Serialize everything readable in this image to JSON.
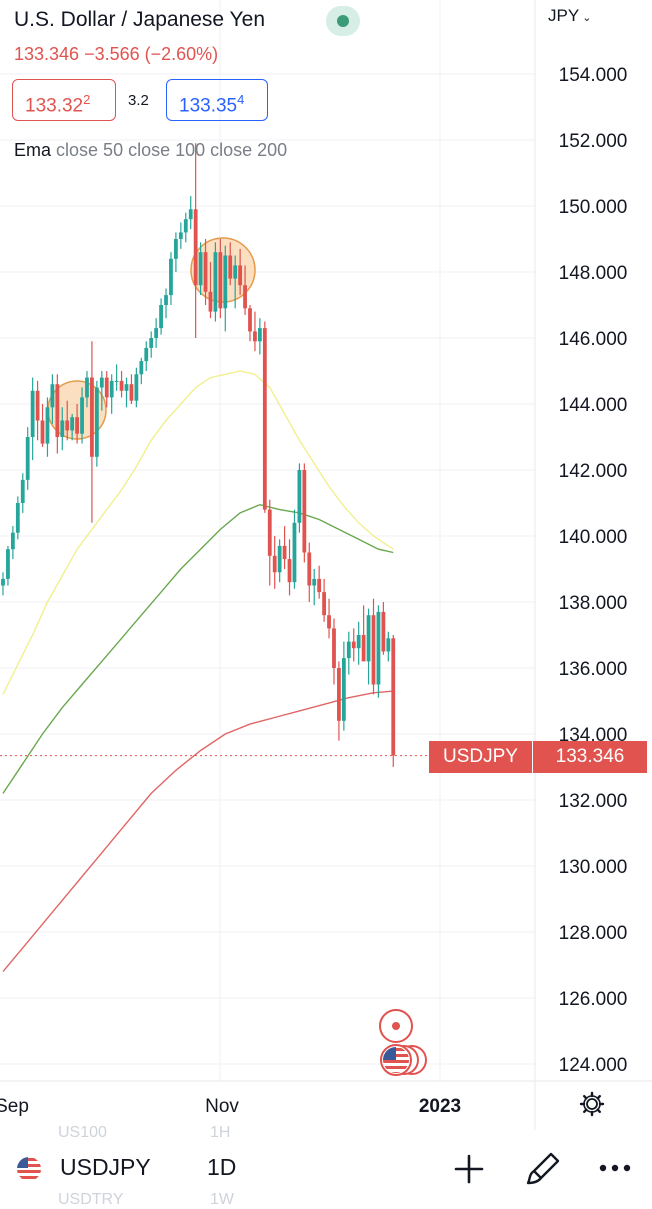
{
  "header": {
    "title": "U.S. Dollar / Japanese Yen",
    "change": "133.346 −3.566 (−2.60%)",
    "bid": "133.32",
    "bid_sup": "2",
    "spread": "3.2",
    "ask": "133.35",
    "ask_sup": "4",
    "ema_label": "Ema",
    "ema_params": "close 50 close 100 close 200",
    "currency": "JPY"
  },
  "price_tags": {
    "symbol": "USDJPY",
    "last": "133.346"
  },
  "toolbar": {
    "symbol": "USDJPY",
    "interval": "1D",
    "ghost_top_symbol": "US100",
    "ghost_top_interval": "1H",
    "ghost_bottom_symbol": "USDTRY",
    "ghost_bottom_interval": "1W"
  },
  "colors": {
    "up": "#26a69a",
    "down": "#e0534f",
    "ema50": "#f2ef8f",
    "ema100": "#6aa84f",
    "ema200": "#e06666",
    "highlight": "#f6c48e"
  },
  "chart_data": {
    "type": "candlestick",
    "symbol": "USDJPY",
    "interval": "1D",
    "y_ticks": [
      154,
      152,
      150,
      148,
      146,
      144,
      142,
      140,
      138,
      136,
      134,
      132,
      130,
      128,
      126,
      124
    ],
    "y_tick_labels": [
      "154.000",
      "152.000",
      "150.000",
      "148.000",
      "146.000",
      "144.000",
      "142.000",
      "140.000",
      "138.000",
      "136.000",
      "134.000",
      "132.000",
      "130.000",
      "128.000",
      "126.000",
      "124.000"
    ],
    "ylim": [
      123.1,
      155.3
    ],
    "x_labels": [
      "Sep",
      "Nov",
      "2023"
    ],
    "last_price": 133.346,
    "candles_ohlc": [
      [
        138.5,
        138.9,
        138.2,
        138.7
      ],
      [
        138.7,
        139.7,
        138.5,
        139.6
      ],
      [
        139.6,
        140.3,
        139.3,
        140.1
      ],
      [
        140.1,
        141.2,
        139.9,
        141.0
      ],
      [
        141.0,
        141.9,
        140.7,
        141.7
      ],
      [
        141.7,
        143.3,
        141.4,
        143.0
      ],
      [
        143.0,
        144.8,
        142.3,
        144.4
      ],
      [
        144.4,
        144.7,
        142.9,
        143.5
      ],
      [
        143.5,
        144.0,
        142.7,
        142.8
      ],
      [
        142.8,
        144.2,
        142.4,
        143.9
      ],
      [
        143.9,
        144.9,
        143.4,
        144.6
      ],
      [
        144.6,
        144.9,
        142.5,
        143.0
      ],
      [
        143.0,
        143.9,
        142.6,
        143.5
      ],
      [
        143.5,
        144.1,
        142.9,
        143.2
      ],
      [
        143.2,
        143.7,
        142.9,
        143.6
      ],
      [
        143.6,
        144.0,
        142.8,
        143.1
      ],
      [
        143.1,
        144.5,
        142.8,
        144.2
      ],
      [
        144.2,
        145.0,
        143.9,
        144.8
      ],
      [
        144.8,
        145.9,
        140.4,
        142.4
      ],
      [
        142.4,
        144.7,
        142.1,
        144.5
      ],
      [
        144.5,
        145.0,
        143.8,
        144.8
      ],
      [
        144.8,
        145.0,
        143.9,
        144.2
      ],
      [
        144.2,
        144.9,
        143.7,
        144.7
      ],
      [
        144.7,
        145.2,
        144.4,
        144.7
      ],
      [
        144.7,
        145.0,
        144.2,
        144.4
      ],
      [
        144.4,
        144.8,
        143.9,
        144.6
      ],
      [
        144.6,
        144.9,
        144.0,
        144.1
      ],
      [
        144.1,
        145.1,
        143.9,
        144.9
      ],
      [
        144.9,
        145.4,
        144.6,
        145.3
      ],
      [
        145.3,
        145.9,
        145.0,
        145.7
      ],
      [
        145.7,
        146.2,
        145.4,
        146.0
      ],
      [
        146.0,
        146.6,
        145.7,
        146.3
      ],
      [
        146.3,
        147.2,
        146.1,
        147.0
      ],
      [
        147.0,
        147.5,
        146.6,
        147.3
      ],
      [
        147.3,
        148.6,
        147.0,
        148.4
      ],
      [
        148.4,
        149.2,
        148.0,
        149.0
      ],
      [
        149.0,
        149.5,
        148.7,
        149.2
      ],
      [
        149.2,
        149.8,
        148.9,
        149.6
      ],
      [
        149.6,
        150.3,
        149.3,
        149.9
      ],
      [
        149.9,
        151.9,
        146.0,
        147.6
      ],
      [
        147.6,
        148.9,
        147.3,
        148.6
      ],
      [
        148.6,
        149.0,
        147.0,
        147.4
      ],
      [
        147.4,
        148.3,
        146.6,
        146.8
      ],
      [
        146.8,
        148.9,
        146.5,
        148.6
      ],
      [
        148.6,
        149.0,
        146.6,
        146.9
      ],
      [
        146.9,
        148.8,
        146.2,
        148.5
      ],
      [
        148.5,
        148.9,
        147.6,
        147.8
      ],
      [
        147.8,
        148.5,
        146.9,
        148.2
      ],
      [
        148.2,
        148.7,
        147.3,
        147.6
      ],
      [
        147.6,
        148.2,
        146.7,
        146.9
      ],
      [
        146.9,
        147.0,
        145.9,
        146.2
      ],
      [
        146.2,
        146.8,
        145.6,
        145.9
      ],
      [
        145.9,
        146.6,
        145.5,
        146.3
      ],
      [
        146.3,
        146.5,
        140.7,
        140.8
      ],
      [
        140.8,
        141.1,
        138.5,
        139.4
      ],
      [
        139.4,
        140.0,
        138.4,
        138.9
      ],
      [
        138.9,
        139.9,
        138.6,
        139.7
      ],
      [
        139.7,
        140.3,
        139.0,
        139.3
      ],
      [
        139.3,
        139.9,
        138.2,
        138.6
      ],
      [
        138.6,
        140.8,
        138.4,
        140.4
      ],
      [
        140.4,
        142.2,
        140.1,
        142.0
      ],
      [
        142.0,
        142.2,
        139.2,
        139.5
      ],
      [
        139.5,
        139.8,
        138.0,
        138.5
      ],
      [
        138.5,
        139.0,
        137.9,
        138.7
      ],
      [
        138.7,
        139.1,
        138.1,
        138.3
      ],
      [
        138.3,
        138.7,
        137.4,
        137.6
      ],
      [
        137.6,
        138.1,
        136.9,
        137.2
      ],
      [
        137.2,
        137.5,
        135.5,
        136.0
      ],
      [
        136.0,
        136.2,
        133.8,
        134.4
      ],
      [
        134.4,
        136.8,
        134.1,
        136.3
      ],
      [
        136.3,
        137.1,
        135.8,
        136.8
      ],
      [
        136.8,
        137.2,
        136.2,
        136.6
      ],
      [
        136.6,
        137.4,
        136.1,
        137.0
      ],
      [
        137.0,
        137.9,
        136.4,
        136.2
      ],
      [
        136.2,
        137.8,
        135.5,
        137.6
      ],
      [
        137.6,
        138.1,
        135.2,
        135.5
      ],
      [
        135.5,
        137.9,
        135.1,
        137.7
      ],
      [
        137.7,
        138.0,
        136.4,
        136.5
      ],
      [
        136.5,
        137.1,
        136.2,
        136.9
      ],
      [
        136.9,
        137.0,
        133.0,
        133.346
      ]
    ],
    "ema50": [
      [
        0,
        135.2
      ],
      [
        3,
        136.1
      ],
      [
        6,
        137.0
      ],
      [
        9,
        138.0
      ],
      [
        12,
        138.8
      ],
      [
        15,
        139.6
      ],
      [
        18,
        140.2
      ],
      [
        21,
        140.8
      ],
      [
        24,
        141.4
      ],
      [
        27,
        142.1
      ],
      [
        30,
        142.9
      ],
      [
        33,
        143.5
      ],
      [
        36,
        144.0
      ],
      [
        39,
        144.5
      ],
      [
        42,
        144.8
      ],
      [
        45,
        144.9
      ],
      [
        48,
        145.0
      ],
      [
        51,
        144.9
      ],
      [
        54,
        144.5
      ],
      [
        57,
        143.7
      ],
      [
        60,
        142.9
      ],
      [
        63,
        142.2
      ],
      [
        66,
        141.5
      ],
      [
        69,
        140.9
      ],
      [
        72,
        140.4
      ],
      [
        75,
        140.0
      ],
      [
        79,
        139.6
      ]
    ],
    "ema100": [
      [
        0,
        132.2
      ],
      [
        4,
        133.1
      ],
      [
        8,
        134.0
      ],
      [
        12,
        134.8
      ],
      [
        16,
        135.5
      ],
      [
        20,
        136.2
      ],
      [
        24,
        136.9
      ],
      [
        28,
        137.6
      ],
      [
        32,
        138.3
      ],
      [
        36,
        139.0
      ],
      [
        40,
        139.6
      ],
      [
        44,
        140.2
      ],
      [
        48,
        140.7
      ],
      [
        52,
        140.95
      ],
      [
        56,
        140.8
      ],
      [
        60,
        140.7
      ],
      [
        64,
        140.5
      ],
      [
        68,
        140.2
      ],
      [
        72,
        139.9
      ],
      [
        76,
        139.6
      ],
      [
        79,
        139.5
      ]
    ],
    "ema200": [
      [
        0,
        126.8
      ],
      [
        5,
        127.7
      ],
      [
        10,
        128.6
      ],
      [
        15,
        129.5
      ],
      [
        20,
        130.4
      ],
      [
        25,
        131.3
      ],
      [
        30,
        132.2
      ],
      [
        35,
        132.9
      ],
      [
        40,
        133.5
      ],
      [
        45,
        134.0
      ],
      [
        50,
        134.3
      ],
      [
        55,
        134.5
      ],
      [
        60,
        134.7
      ],
      [
        65,
        134.9
      ],
      [
        70,
        135.1
      ],
      [
        75,
        135.25
      ],
      [
        79,
        135.3
      ]
    ]
  }
}
